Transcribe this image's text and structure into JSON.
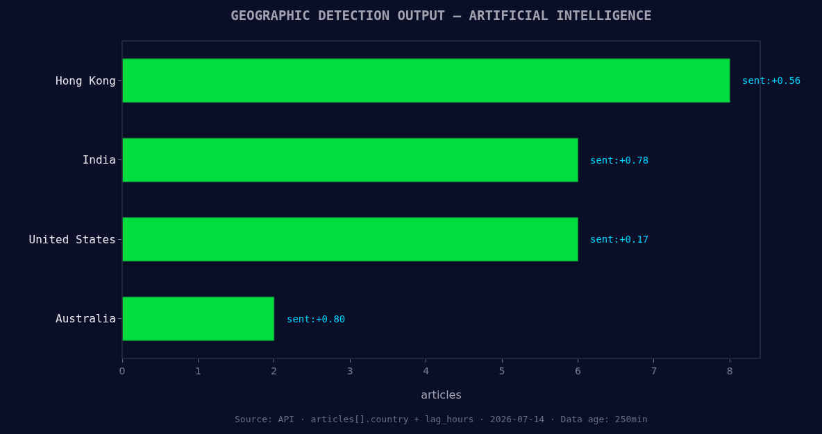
{
  "chart_data": {
    "type": "bar",
    "orientation": "horizontal",
    "title": "GEOGRAPHIC DETECTION OUTPUT — ARTIFICIAL INTELLIGENCE",
    "xlabel": "articles",
    "categories": [
      "Hong Kong",
      "India",
      "United States",
      "Australia"
    ],
    "values": [
      8,
      6,
      6,
      2
    ],
    "color": "#00dd3f",
    "xlim": [
      0,
      8.4
    ],
    "xticks": [
      0,
      1,
      2,
      3,
      4,
      5,
      6,
      7,
      8
    ],
    "grid": false,
    "annotations": [
      {
        "text": "sent:+0.56",
        "x": 8,
        "y": "Hong Kong"
      },
      {
        "text": "sent:+0.78",
        "x": 6,
        "y": "India"
      },
      {
        "text": "sent:+0.17",
        "x": 6,
        "y": "United States"
      },
      {
        "text": "sent:+0.80",
        "x": 2,
        "y": "Australia"
      },
      "Source: API · articles[].country + lag_hours · 2026-07-14 · Data age: 250min"
    ]
  }
}
